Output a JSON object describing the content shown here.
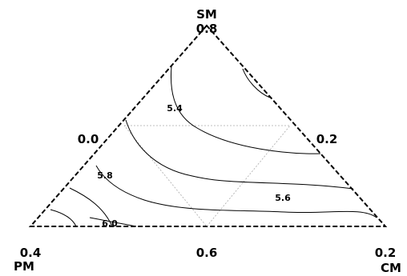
{
  "chart_data": {
    "type": "ternary-contour",
    "vertices": [
      {
        "name": "SM",
        "value": "0.8"
      },
      {
        "name": "PM",
        "value": "0.4"
      },
      {
        "name": "CM",
        "value": "0.2"
      }
    ],
    "edge_ticks": [
      {
        "edge": "left",
        "label": "0.0"
      },
      {
        "edge": "right",
        "label": "0.2"
      },
      {
        "edge": "bottom",
        "label": "0.6"
      }
    ],
    "contour_levels": [
      "5.4",
      "5.6",
      "5.8",
      "6.0"
    ],
    "pseudocomponent_region": "dashed inner triangle"
  }
}
